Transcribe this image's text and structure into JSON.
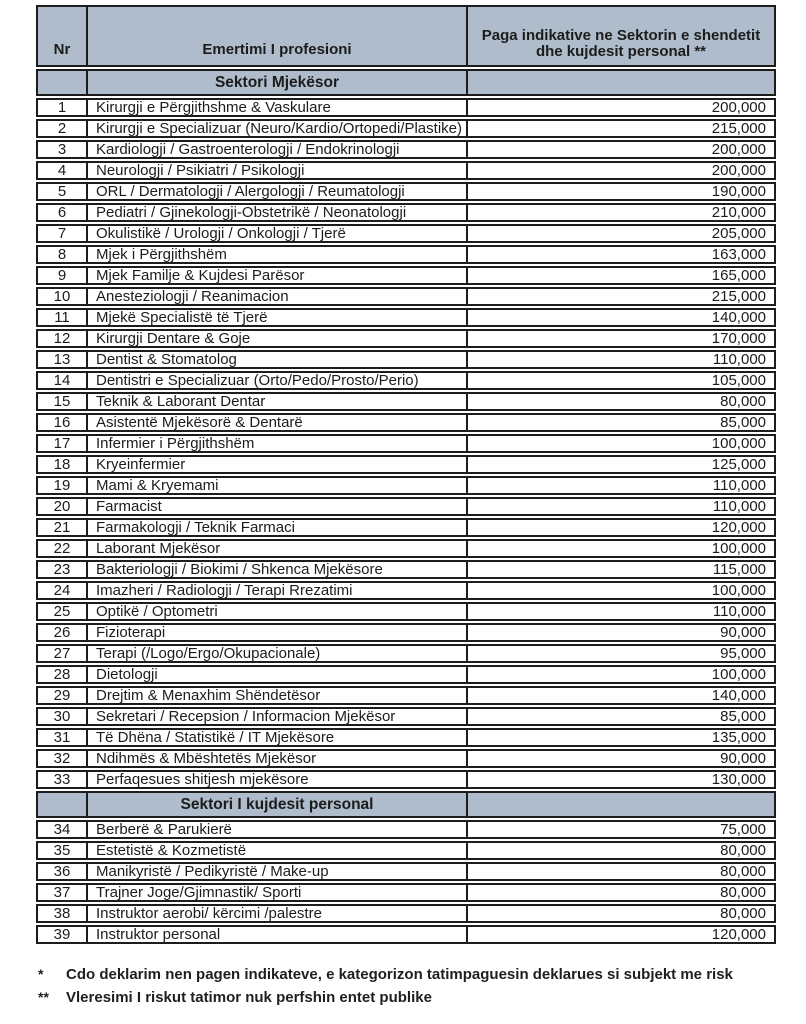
{
  "table": {
    "columns": {
      "nr": "Nr",
      "profession": "Emertimi I profesioni",
      "salary": "Paga indikative ne Sektorin e shendetit dhe kujdesit personal **"
    },
    "sections": [
      {
        "title": "Sektori Mjekësor",
        "rows": [
          {
            "nr": "1",
            "name": "Kirurgji e Përgjithshme & Vaskulare",
            "value": "200,000"
          },
          {
            "nr": "2",
            "name": "Kirurgji e Specializuar (Neuro/Kardio/Ortopedi/Plastike)",
            "value": "215,000"
          },
          {
            "nr": "3",
            "name": "Kardiologji / Gastroenterologji / Endokrinologji",
            "value": "200,000"
          },
          {
            "nr": "4",
            "name": "Neurologji / Psikiatri / Psikologji",
            "value": "200,000"
          },
          {
            "nr": "5",
            "name": "ORL / Dermatologji / Alergologji / Reumatologji",
            "value": "190,000"
          },
          {
            "nr": "6",
            "name": "Pediatri / Gjinekologji-Obstetrikë / Neonatologji",
            "value": "210,000"
          },
          {
            "nr": "7",
            "name": "Okulistikë / Urologji / Onkologji / Tjerë",
            "value": "205,000"
          },
          {
            "nr": "8",
            "name": "Mjek i Përgjithshëm",
            "value": "163,000"
          },
          {
            "nr": "9",
            "name": "Mjek Familje & Kujdesi Parësor",
            "value": "165,000"
          },
          {
            "nr": "10",
            "name": "Anesteziologji / Reanimacion",
            "value": "215,000"
          },
          {
            "nr": "11",
            "name": "Mjekë Specialistë të Tjerë",
            "value": "140,000"
          },
          {
            "nr": "12",
            "name": "Kirurgji Dentare & Goje",
            "value": "170,000"
          },
          {
            "nr": "13",
            "name": "Dentist & Stomatolog",
            "value": "110,000"
          },
          {
            "nr": "14",
            "name": "Dentistri e Specializuar (Orto/Pedo/Prosto/Perio)",
            "value": "105,000"
          },
          {
            "nr": "15",
            "name": "Teknik & Laborant Dentar",
            "value": "80,000"
          },
          {
            "nr": "16",
            "name": "Asistentë Mjekësorë & Dentarë",
            "value": "85,000"
          },
          {
            "nr": "17",
            "name": "Infermier i Përgjithshëm",
            "value": "100,000"
          },
          {
            "nr": "18",
            "name": "Kryeinfermier",
            "value": "125,000"
          },
          {
            "nr": "19",
            "name": "Mami & Kryemami",
            "value": "110,000"
          },
          {
            "nr": "20",
            "name": "Farmacist",
            "value": "110,000"
          },
          {
            "nr": "21",
            "name": "Farmakologji / Teknik Farmaci",
            "value": "120,000"
          },
          {
            "nr": "22",
            "name": "Laborant Mjekësor",
            "value": "100,000"
          },
          {
            "nr": "23",
            "name": "Bakteriologji / Biokimi / Shkenca Mjekësore",
            "value": "115,000"
          },
          {
            "nr": "24",
            "name": "Imazheri / Radiologji / Terapi Rrezatimi",
            "value": "100,000"
          },
          {
            "nr": "25",
            "name": "Optikë / Optometri",
            "value": "110,000"
          },
          {
            "nr": "26",
            "name": "Fizioterapi",
            "value": "90,000"
          },
          {
            "nr": "27",
            "name": "Terapi (/Logo/Ergo/Okupacionale)",
            "value": "95,000"
          },
          {
            "nr": "28",
            "name": "Dietologji",
            "value": "100,000"
          },
          {
            "nr": "29",
            "name": "Drejtim & Menaxhim Shëndetësor",
            "value": "140,000"
          },
          {
            "nr": "30",
            "name": "Sekretari / Recepsion / Informacion Mjekësor",
            "value": "85,000"
          },
          {
            "nr": "31",
            "name": "Të Dhëna / Statistikë / IT Mjekësore",
            "value": "135,000"
          },
          {
            "nr": "32",
            "name": "Ndihmës & Mbështetës Mjekësor",
            "value": "90,000"
          },
          {
            "nr": "33",
            "name": "Perfaqesues shitjesh mjekësore",
            "value": "130,000"
          }
        ]
      },
      {
        "title": "Sektori I kujdesit personal",
        "rows": [
          {
            "nr": "34",
            "name": "Berberë & Parukierë",
            "value": "75,000"
          },
          {
            "nr": "35",
            "name": "Estetistë & Kozmetistë",
            "value": "80,000"
          },
          {
            "nr": "36",
            "name": "Manikyristë / Pedikyristë / Make-up",
            "value": "80,000"
          },
          {
            "nr": "37",
            "name": "Trajner Joge/Gjimnastik/ Sporti",
            "value": "80,000"
          },
          {
            "nr": "38",
            "name": "Instruktor aerobi/ kërcimi /palestre",
            "value": "80,000"
          },
          {
            "nr": "39",
            "name": "Instruktor personal",
            "value": "120,000"
          }
        ]
      }
    ]
  },
  "footnotes": [
    {
      "marker": "*",
      "text": "Cdo deklarim nen pagen indikateve, e kategorizon tatimpaguesin deklarues si subjekt me risk"
    },
    {
      "marker": "**",
      "text": "Vleresimi I riskut tatimor nuk perfshin entet publike"
    }
  ],
  "colors": {
    "header_bg": "#aebccb",
    "border": "#1d1d1d",
    "text": "#1c1c1c"
  }
}
